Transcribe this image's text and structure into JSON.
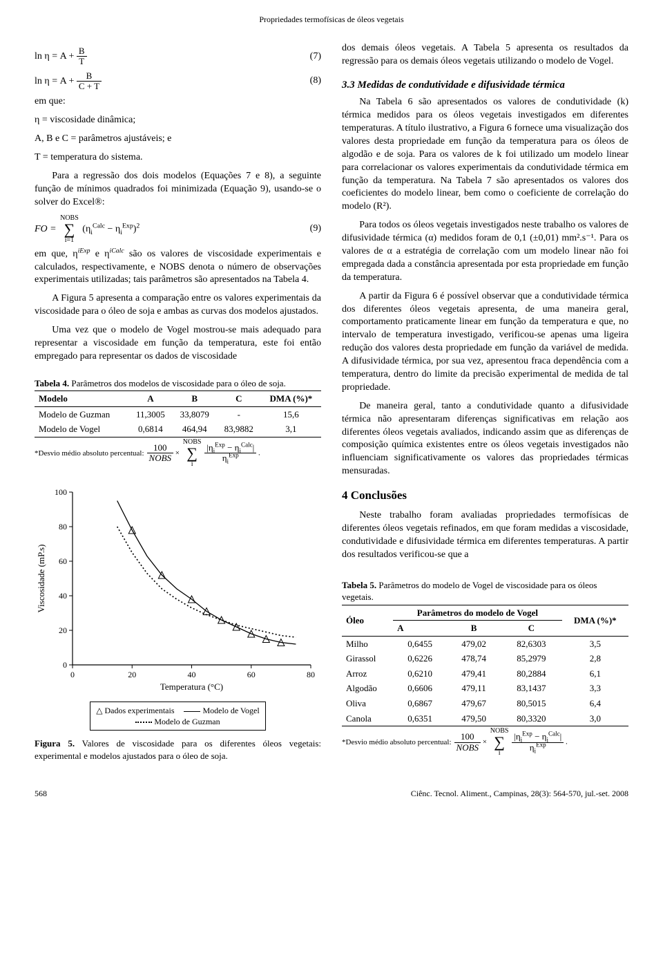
{
  "running_head": "Propriedades termofísicas de óleos vegetais",
  "eq7": {
    "text": "ln η = A + ",
    "frac_num": "B",
    "frac_den": "T",
    "num": "(7)"
  },
  "eq8": {
    "text": "ln η = A + ",
    "frac_num": "B",
    "frac_den": "C + T",
    "num": "(8)"
  },
  "emque": "em que:",
  "def_eta": "η = viscosidade dinâmica;",
  "def_abc": "A, B e C = parâmetros ajustáveis; e",
  "def_t": "T = temperatura do sistema.",
  "para1": "Para a regressão dos dois modelos (Equações 7 e 8), a seguinte função de mínimos quadrados foi minimizada (Equação 9), usando-se o solver do Excel®:",
  "eq9": {
    "lead": "FO = ",
    "sum_top": "NOBS",
    "sum_bot": "i=1",
    "body_a": "η",
    "body_a_sup": "Calc",
    "body_a_sub": "i",
    "body_b": "η",
    "body_b_sup": "Exp",
    "body_b_sub": "i",
    "pow": "2",
    "num": "(9)"
  },
  "para2_a": "em que, η",
  "para2_b": " e η",
  "para2_c": " são os valores de viscosidade experimentais e calculados, respectivamente, e NOBS denota o número de observações experimentais utilizadas; tais parâmetros são apresentados na Tabela 4.",
  "para2_i_exp": "iExp",
  "para2_i_calc": "iCalc",
  "para2_it_nobs": "NOBS",
  "para3": "A Figura 5 apresenta a comparação entre os valores experimentais da viscosidade para o óleo de soja e ambas as curvas dos modelos ajustados.",
  "para4": "Uma vez que o modelo de Vogel mostrou-se mais adequado para representar a viscosidade em função da temperatura, este foi então empregado para representar os dados de viscosidade",
  "tabela4": {
    "caption_b": "Tabela 4.",
    "caption": " Parâmetros dos modelos de viscosidade para o óleo de soja.",
    "head": [
      "Modelo",
      "A",
      "B",
      "C",
      "DMA (%)*"
    ],
    "rows": [
      [
        "Modelo de Guzman",
        "11,3005",
        "33,8079",
        "-",
        "15,6"
      ],
      [
        "Modelo de Vogel",
        "0,6814",
        "464,94",
        "83,9882",
        "3,1"
      ]
    ],
    "footnote_label": "*Desvio médio absoluto percentual:",
    "footnote_eq": {
      "f1_num": "100",
      "f1_den": "NOBS",
      "times": "×",
      "sum_top": "NOBS",
      "sum_bot": "i",
      "f2_num_a": "η",
      "f2_num_a_sup": "Exp",
      "f2_num_a_sub": "i",
      "f2_num_b": "η",
      "f2_num_b_sup": "Calc",
      "f2_num_b_sub": "i",
      "f2_den_a": "η",
      "f2_den_a_sup": "Exp",
      "f2_den_a_sub": "i",
      "tail": "."
    }
  },
  "fig5": {
    "type": "scatter+line",
    "xlabel": "Temperatura (°C)",
    "ylabel": "Viscosidade (mP.s)",
    "xlim": [
      0,
      80
    ],
    "ylim": [
      0,
      100
    ],
    "xticks": [
      0,
      20,
      40,
      60,
      80
    ],
    "yticks": [
      0,
      20,
      40,
      60,
      80,
      100
    ],
    "axis_color": "#000000",
    "tick_fontsize": 12,
    "label_fontsize": 13,
    "background_color": "#ffffff",
    "series_exp": {
      "label": "Dados experimentais",
      "marker": "triangle-open",
      "color": "#000000",
      "points": [
        [
          20,
          78
        ],
        [
          30,
          52
        ],
        [
          40,
          38
        ],
        [
          45,
          31
        ],
        [
          50,
          26
        ],
        [
          55,
          22
        ],
        [
          60,
          18
        ],
        [
          65,
          15
        ],
        [
          70,
          13
        ]
      ]
    },
    "series_vogel": {
      "label": "Modelo de Vogel",
      "style": "solid",
      "color": "#000000",
      "line_width": 1.3,
      "points": [
        [
          15,
          95
        ],
        [
          20,
          78
        ],
        [
          25,
          63
        ],
        [
          30,
          52
        ],
        [
          35,
          44
        ],
        [
          40,
          38
        ],
        [
          45,
          31
        ],
        [
          50,
          26
        ],
        [
          55,
          22
        ],
        [
          60,
          18
        ],
        [
          65,
          15
        ],
        [
          70,
          13
        ],
        [
          75,
          12
        ]
      ]
    },
    "series_guzman": {
      "label": "Modelo de Guzman",
      "style": "dotted",
      "color": "#000000",
      "line_width": 1.7,
      "points": [
        [
          15,
          80
        ],
        [
          20,
          65
        ],
        [
          25,
          53
        ],
        [
          30,
          44
        ],
        [
          35,
          38
        ],
        [
          40,
          33
        ],
        [
          45,
          29
        ],
        [
          50,
          26
        ],
        [
          55,
          23
        ],
        [
          60,
          21
        ],
        [
          65,
          19
        ],
        [
          70,
          17
        ],
        [
          75,
          16
        ]
      ]
    },
    "legend": {
      "exp": "Dados experimentais",
      "vogel": "Modelo de Vogel",
      "guzman": "Modelo de Guzman"
    },
    "caption_b": "Figura 5.",
    "caption": " Valores de viscosidade para os diferentes óleos vegetais: experimental e modelos ajustados para o óleo de soja."
  },
  "right": {
    "p1": "dos demais óleos vegetais. A Tabela 5 apresenta os resultados da regressão para os demais óleos vegetais utilizando o modelo de Vogel.",
    "h33": "3.3 Medidas de condutividade e difusividade térmica",
    "p2": "Na Tabela 6 são apresentados os valores de condutividade (k) térmica medidos para os óleos vegetais investigados em diferentes temperaturas. A título ilustrativo, a Figura 6 fornece uma visualização dos valores desta propriedade em função da temperatura para os óleos de algodão e de soja. Para os valores de k foi utilizado um modelo linear para correlacionar os valores experimentais da condutividade térmica em função da temperatura. Na Tabela 7 são apresentados os valores dos coeficientes do modelo linear, bem como o coeficiente de correlação do modelo (R²).",
    "p3": "Para todos os óleos vegetais investigados neste trabalho os valores de difusividade térmica (α) medidos foram de 0,1 (±0,01) mm².s⁻¹. Para os valores de α a estratégia de correlação com um modelo linear não foi empregada dada a constância apresentada por esta propriedade em função da temperatura.",
    "p4": "A partir da Figura 6 é possível observar que a condutividade térmica dos diferentes óleos vegetais apresenta, de uma maneira geral, comportamento praticamente linear em função da temperatura e que, no intervalo de temperatura investigado, verificou-se apenas uma ligeira redução dos valores desta propriedade em função da variável de medida. A difusividade térmica, por sua vez, apresentou fraca dependência com a temperatura, dentro do limite da precisão experimental de medida de tal propriedade.",
    "p5": "De maneira geral, tanto a condutividade quanto a difusividade térmica não apresentaram diferenças significativas em relação aos diferentes óleos vegetais avaliados, indicando assim que as diferenças de composição química existentes entre os óleos vegetais investigados não influenciam significativamente os valores das propriedades térmicas mensuradas.",
    "h4": "4 Conclusões",
    "p6": "Neste trabalho foram avaliadas propriedades termofísicas de diferentes óleos vegetais refinados, em que foram medidas a viscosidade, condutividade e difusividade térmica em diferentes temperaturas. A partir dos resultados verificou-se que a"
  },
  "tabela5": {
    "caption_b": "Tabela 5.",
    "caption": " Parâmetros do modelo de Vogel de viscosidade para os óleos vegetais.",
    "head_top": [
      "Óleo",
      "Parâmetros do modelo de Vogel",
      "DMA (%)*"
    ],
    "head_sub": [
      "A",
      "B",
      "C"
    ],
    "rows": [
      [
        "Milho",
        "0,6455",
        "479,02",
        "82,6303",
        "3,5"
      ],
      [
        "Girassol",
        "0,6226",
        "478,74",
        "85,2979",
        "2,8"
      ],
      [
        "Arroz",
        "0,6210",
        "479,41",
        "80,2884",
        "6,1"
      ],
      [
        "Algodão",
        "0,6606",
        "479,11",
        "83,1437",
        "3,3"
      ],
      [
        "Oliva",
        "0,6867",
        "479,67",
        "80,5015",
        "6,4"
      ],
      [
        "Canola",
        "0,6351",
        "479,50",
        "80,3320",
        "3,0"
      ]
    ],
    "footnote_label": "*Desvio médio absoluto percentual:"
  },
  "footer": {
    "page": "568",
    "cite": "Ciênc. Tecnol. Aliment., Campinas, 28(3): 564-570, jul.-set. 2008"
  }
}
